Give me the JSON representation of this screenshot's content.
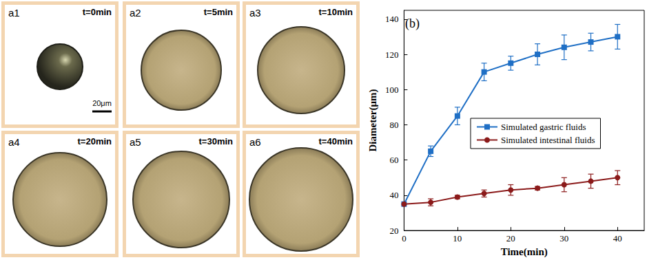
{
  "chart_data": {
    "type": "line",
    "title": "(b)",
    "x_label": "Time(min)",
    "y_label": "Diameter(μm)",
    "x": [
      0,
      5,
      10,
      15,
      20,
      25,
      30,
      35,
      40
    ],
    "series": [
      {
        "name": "Simulated gastric fluids",
        "color": "#1f6fc5",
        "marker": "square",
        "values": [
          35,
          65,
          85,
          110,
          115,
          120,
          124,
          127,
          130
        ],
        "errors": [
          0,
          3,
          5,
          5,
          4,
          6,
          7,
          5,
          7
        ]
      },
      {
        "name": "Simulated intestinal fluids",
        "color": "#8b1a1a",
        "marker": "circle",
        "values": [
          35,
          36,
          39,
          41,
          43,
          44,
          46,
          48,
          50
        ],
        "errors": [
          0,
          2,
          1,
          2,
          3,
          1,
          4,
          4,
          4
        ]
      }
    ],
    "xlim": [
      0,
      45
    ],
    "xticks": [
      0,
      10,
      20,
      30,
      40
    ],
    "ylim": [
      20,
      145
    ],
    "yticks": [
      20,
      40,
      60,
      80,
      100,
      120,
      140
    ],
    "grid": false,
    "legend": "right"
  },
  "micrographs": {
    "scale_bar": "20μm",
    "panels": [
      {
        "label": "a1",
        "time": "t=0min"
      },
      {
        "label": "a2",
        "time": "t=5min"
      },
      {
        "label": "a3",
        "time": "t=10min"
      },
      {
        "label": "a4",
        "time": "t=20min"
      },
      {
        "label": "a5",
        "time": "t=30min"
      },
      {
        "label": "a6",
        "time": "t=40min"
      }
    ]
  }
}
